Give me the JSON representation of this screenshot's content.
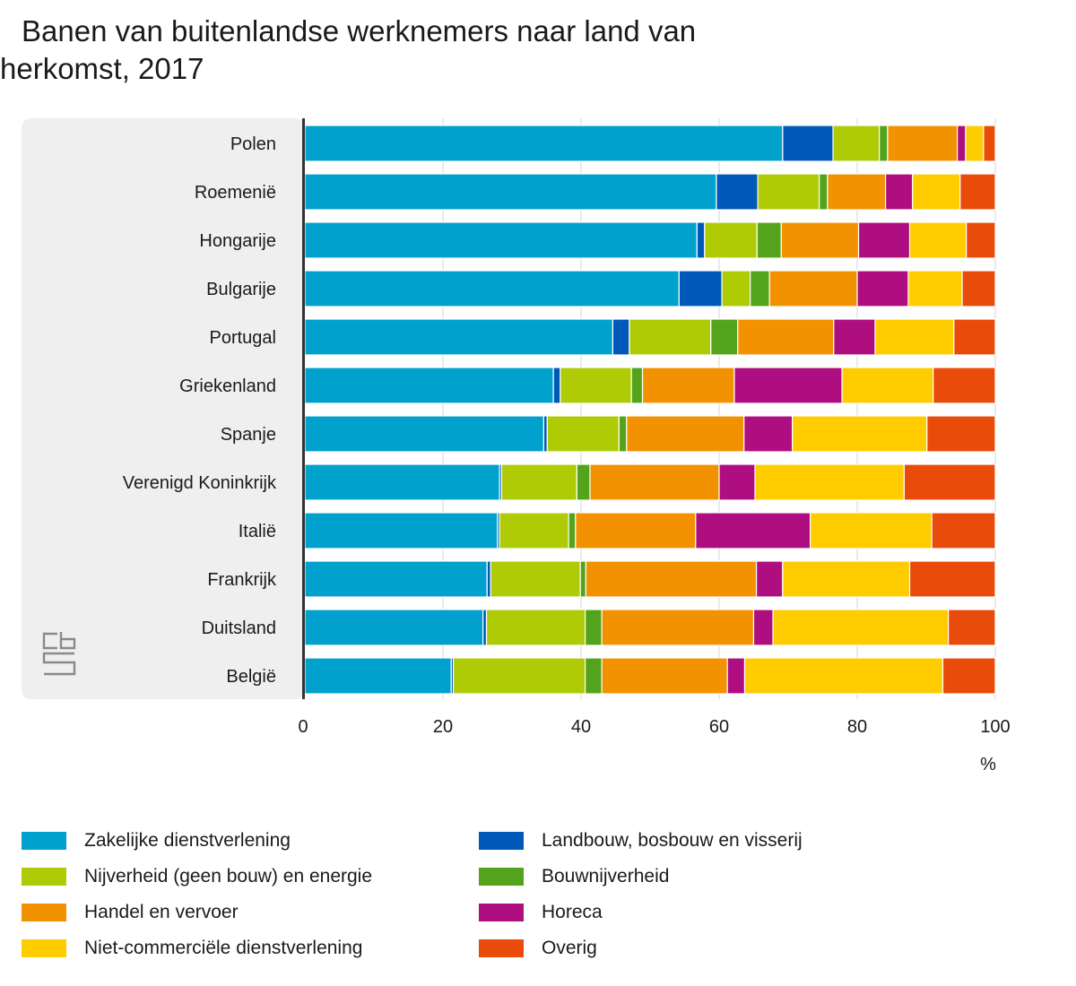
{
  "chart_data": {
    "type": "bar",
    "orientation": "horizontal",
    "stacked": true,
    "title": "Banen van buitenlandse werknemers naar land van herkomst, 2017",
    "xlabel": "%",
    "xlim": [
      0,
      100
    ],
    "xticks": [
      "0",
      "20",
      "40",
      "60",
      "80",
      "100"
    ],
    "grid": true,
    "legend_position": "bottom",
    "categories": [
      "Polen",
      "Roemenië",
      "Hongarije",
      "Bulgarije",
      "Portugal",
      "Griekenland",
      "Spanje",
      "Verenigd Koninkrijk",
      "Italië",
      "Frankrijk",
      "Duitsland",
      "België"
    ],
    "series": [
      {
        "name": "Zakelijke dienstverlening",
        "color": "#00a1cd",
        "values": [
          69.2,
          59.6,
          56.8,
          54.2,
          44.6,
          36.0,
          34.6,
          28.2,
          27.9,
          26.4,
          25.8,
          21.2
        ]
      },
      {
        "name": "Landbouw, bosbouw en visserij",
        "color": "#0058b8",
        "values": [
          7.3,
          6.0,
          1.1,
          6.2,
          2.4,
          1.0,
          0.5,
          0.3,
          0.3,
          0.5,
          0.5,
          0.3
        ]
      },
      {
        "name": "Nijverheid (geen bouw) en energie",
        "color": "#afcb05",
        "values": [
          6.7,
          8.9,
          7.6,
          4.1,
          11.8,
          10.3,
          10.4,
          10.9,
          10.0,
          13.0,
          14.3,
          19.1
        ]
      },
      {
        "name": "Bouwnijverheid",
        "color": "#53a31d",
        "values": [
          1.2,
          1.2,
          3.5,
          2.8,
          3.9,
          1.6,
          1.1,
          1.9,
          1.0,
          0.8,
          2.4,
          2.4
        ]
      },
      {
        "name": "Handel en vervoer",
        "color": "#f39200",
        "values": [
          10.1,
          8.4,
          11.2,
          12.7,
          13.9,
          13.3,
          17.0,
          18.7,
          17.4,
          24.7,
          22.0,
          18.2
        ]
      },
      {
        "name": "Horeca",
        "color": "#af0e80",
        "values": [
          1.2,
          3.9,
          7.4,
          7.4,
          6.0,
          15.6,
          7.0,
          5.2,
          16.6,
          3.8,
          2.8,
          2.5
        ]
      },
      {
        "name": "Niet-commerciële dienstverlening",
        "color": "#ffcc00",
        "values": [
          2.6,
          6.9,
          8.2,
          7.8,
          11.4,
          13.2,
          19.5,
          21.6,
          17.6,
          18.4,
          25.4,
          28.7
        ]
      },
      {
        "name": "Overig",
        "color": "#e94c0a",
        "values": [
          1.7,
          5.1,
          4.2,
          4.8,
          6.0,
          9.0,
          9.9,
          13.2,
          9.2,
          12.4,
          6.8,
          7.6
        ]
      }
    ]
  }
}
